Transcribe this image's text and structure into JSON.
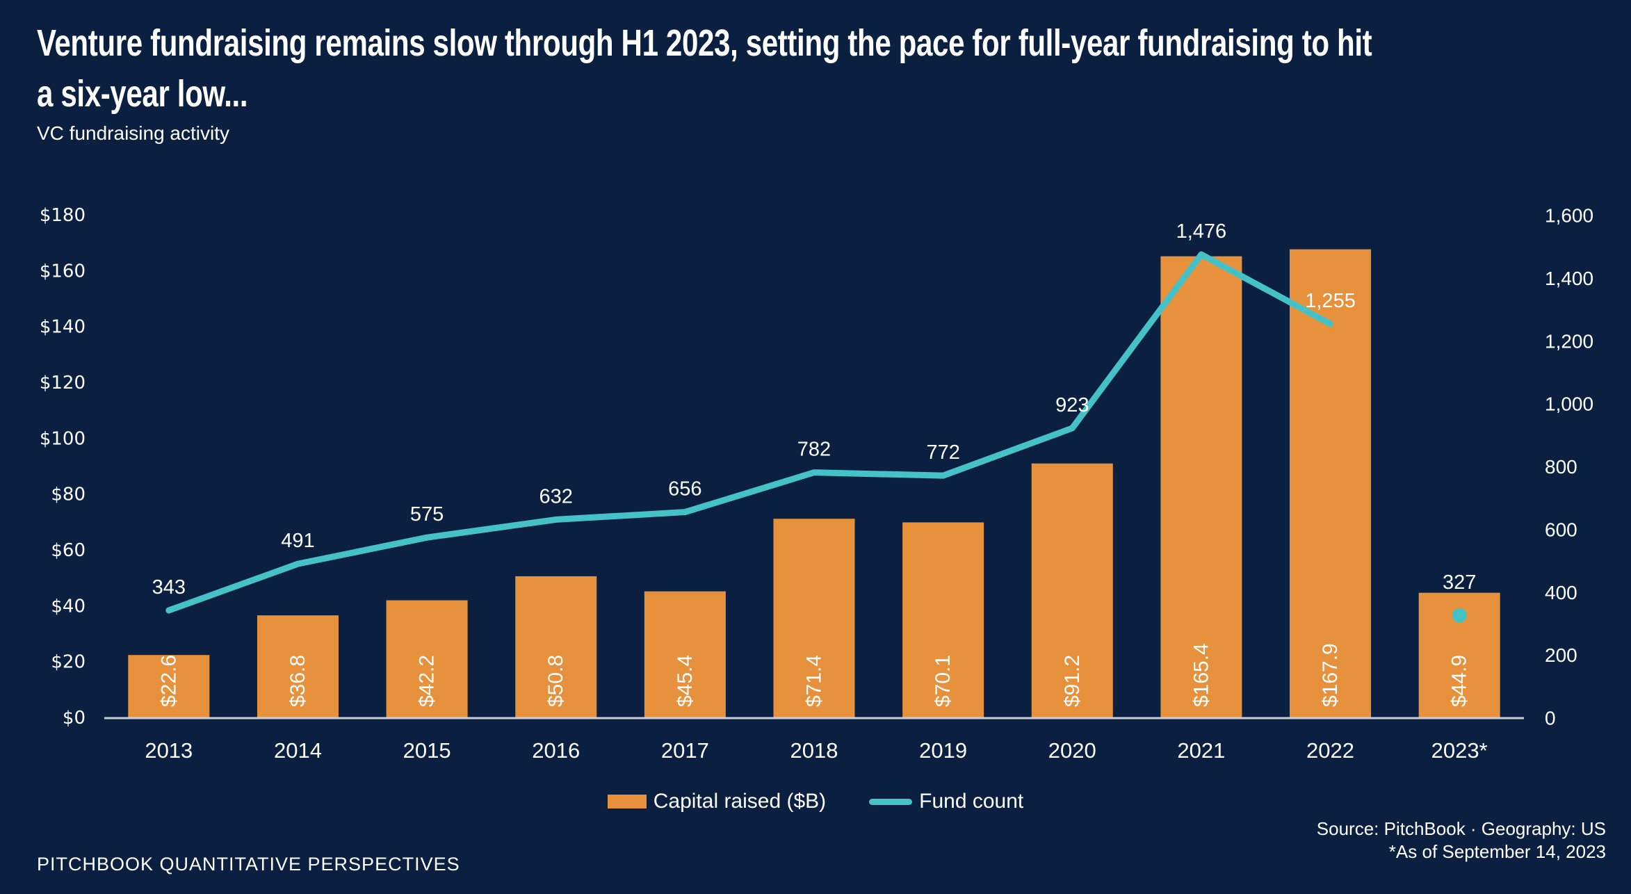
{
  "title": {
    "line1": "Venture fundraising remains slow through H1 2023, setting the pace for full-year fundraising to hit",
    "line2": "a six-year low..."
  },
  "subtitle": "VC fundraising activity",
  "legend": {
    "items": [
      {
        "label": "Capital raised ($B)"
      },
      {
        "label": "Fund count"
      }
    ]
  },
  "source": {
    "line1": "Source: PitchBook · Geography: US",
    "line2": "*As of September 14, 2023"
  },
  "footer": "PITCHBOOK QUANTITATIVE PERSPECTIVES",
  "colors": {
    "background": "#0B2040",
    "bar": "#E8913C",
    "line": "#45C2C8",
    "axis_line": "#C9CFD9",
    "text": "#FFFFFF",
    "bar_label": "#0B2040"
  },
  "chart_data": {
    "type": "combo-bar-line",
    "title": "VC fundraising activity",
    "categories": [
      "2013",
      "2014",
      "2015",
      "2016",
      "2017",
      "2018",
      "2019",
      "2020",
      "2021",
      "2022",
      "2023*"
    ],
    "series": [
      {
        "name": "Capital raised ($B)",
        "type": "bar",
        "axis": "left",
        "color": "#E8913C",
        "values": [
          22.6,
          36.8,
          42.2,
          50.8,
          45.4,
          71.4,
          70.1,
          91.2,
          165.4,
          167.9,
          44.9
        ],
        "data_labels": [
          "$22.6",
          "$36.8",
          "$42.2",
          "$50.8",
          "$45.4",
          "$71.4",
          "$70.1",
          "$91.2",
          "$165.4",
          "$167.9",
          "$44.9"
        ]
      },
      {
        "name": "Fund count",
        "type": "line",
        "axis": "right",
        "color": "#45C2C8",
        "values": [
          343,
          491,
          575,
          632,
          656,
          782,
          772,
          923,
          1476,
          1255,
          327
        ],
        "data_labels": [
          "343",
          "491",
          "575",
          "632",
          "656",
          "782",
          "772",
          "923",
          "1,476",
          "1,255",
          "327"
        ],
        "note": "2023* value shown as an unconnected dot marker"
      }
    ],
    "left_axis": {
      "min": 0,
      "max": 180,
      "tick_values": [
        0,
        20,
        40,
        60,
        80,
        100,
        120,
        140,
        160,
        180
      ],
      "tick_labels": [
        "$0",
        "$20",
        "$40",
        "$60",
        "$80",
        "$100",
        "$120",
        "$140",
        "$160",
        "$180"
      ]
    },
    "right_axis": {
      "min": 0,
      "max": 1600,
      "tick_values": [
        0,
        200,
        400,
        600,
        800,
        1000,
        1200,
        1400,
        1600
      ],
      "tick_labels": [
        "0",
        "200",
        "400",
        "600",
        "800",
        "1,000",
        "1,200",
        "1,400",
        "1,600"
      ]
    },
    "grid": false,
    "legend_position": "bottom",
    "background": "dark-navy"
  }
}
